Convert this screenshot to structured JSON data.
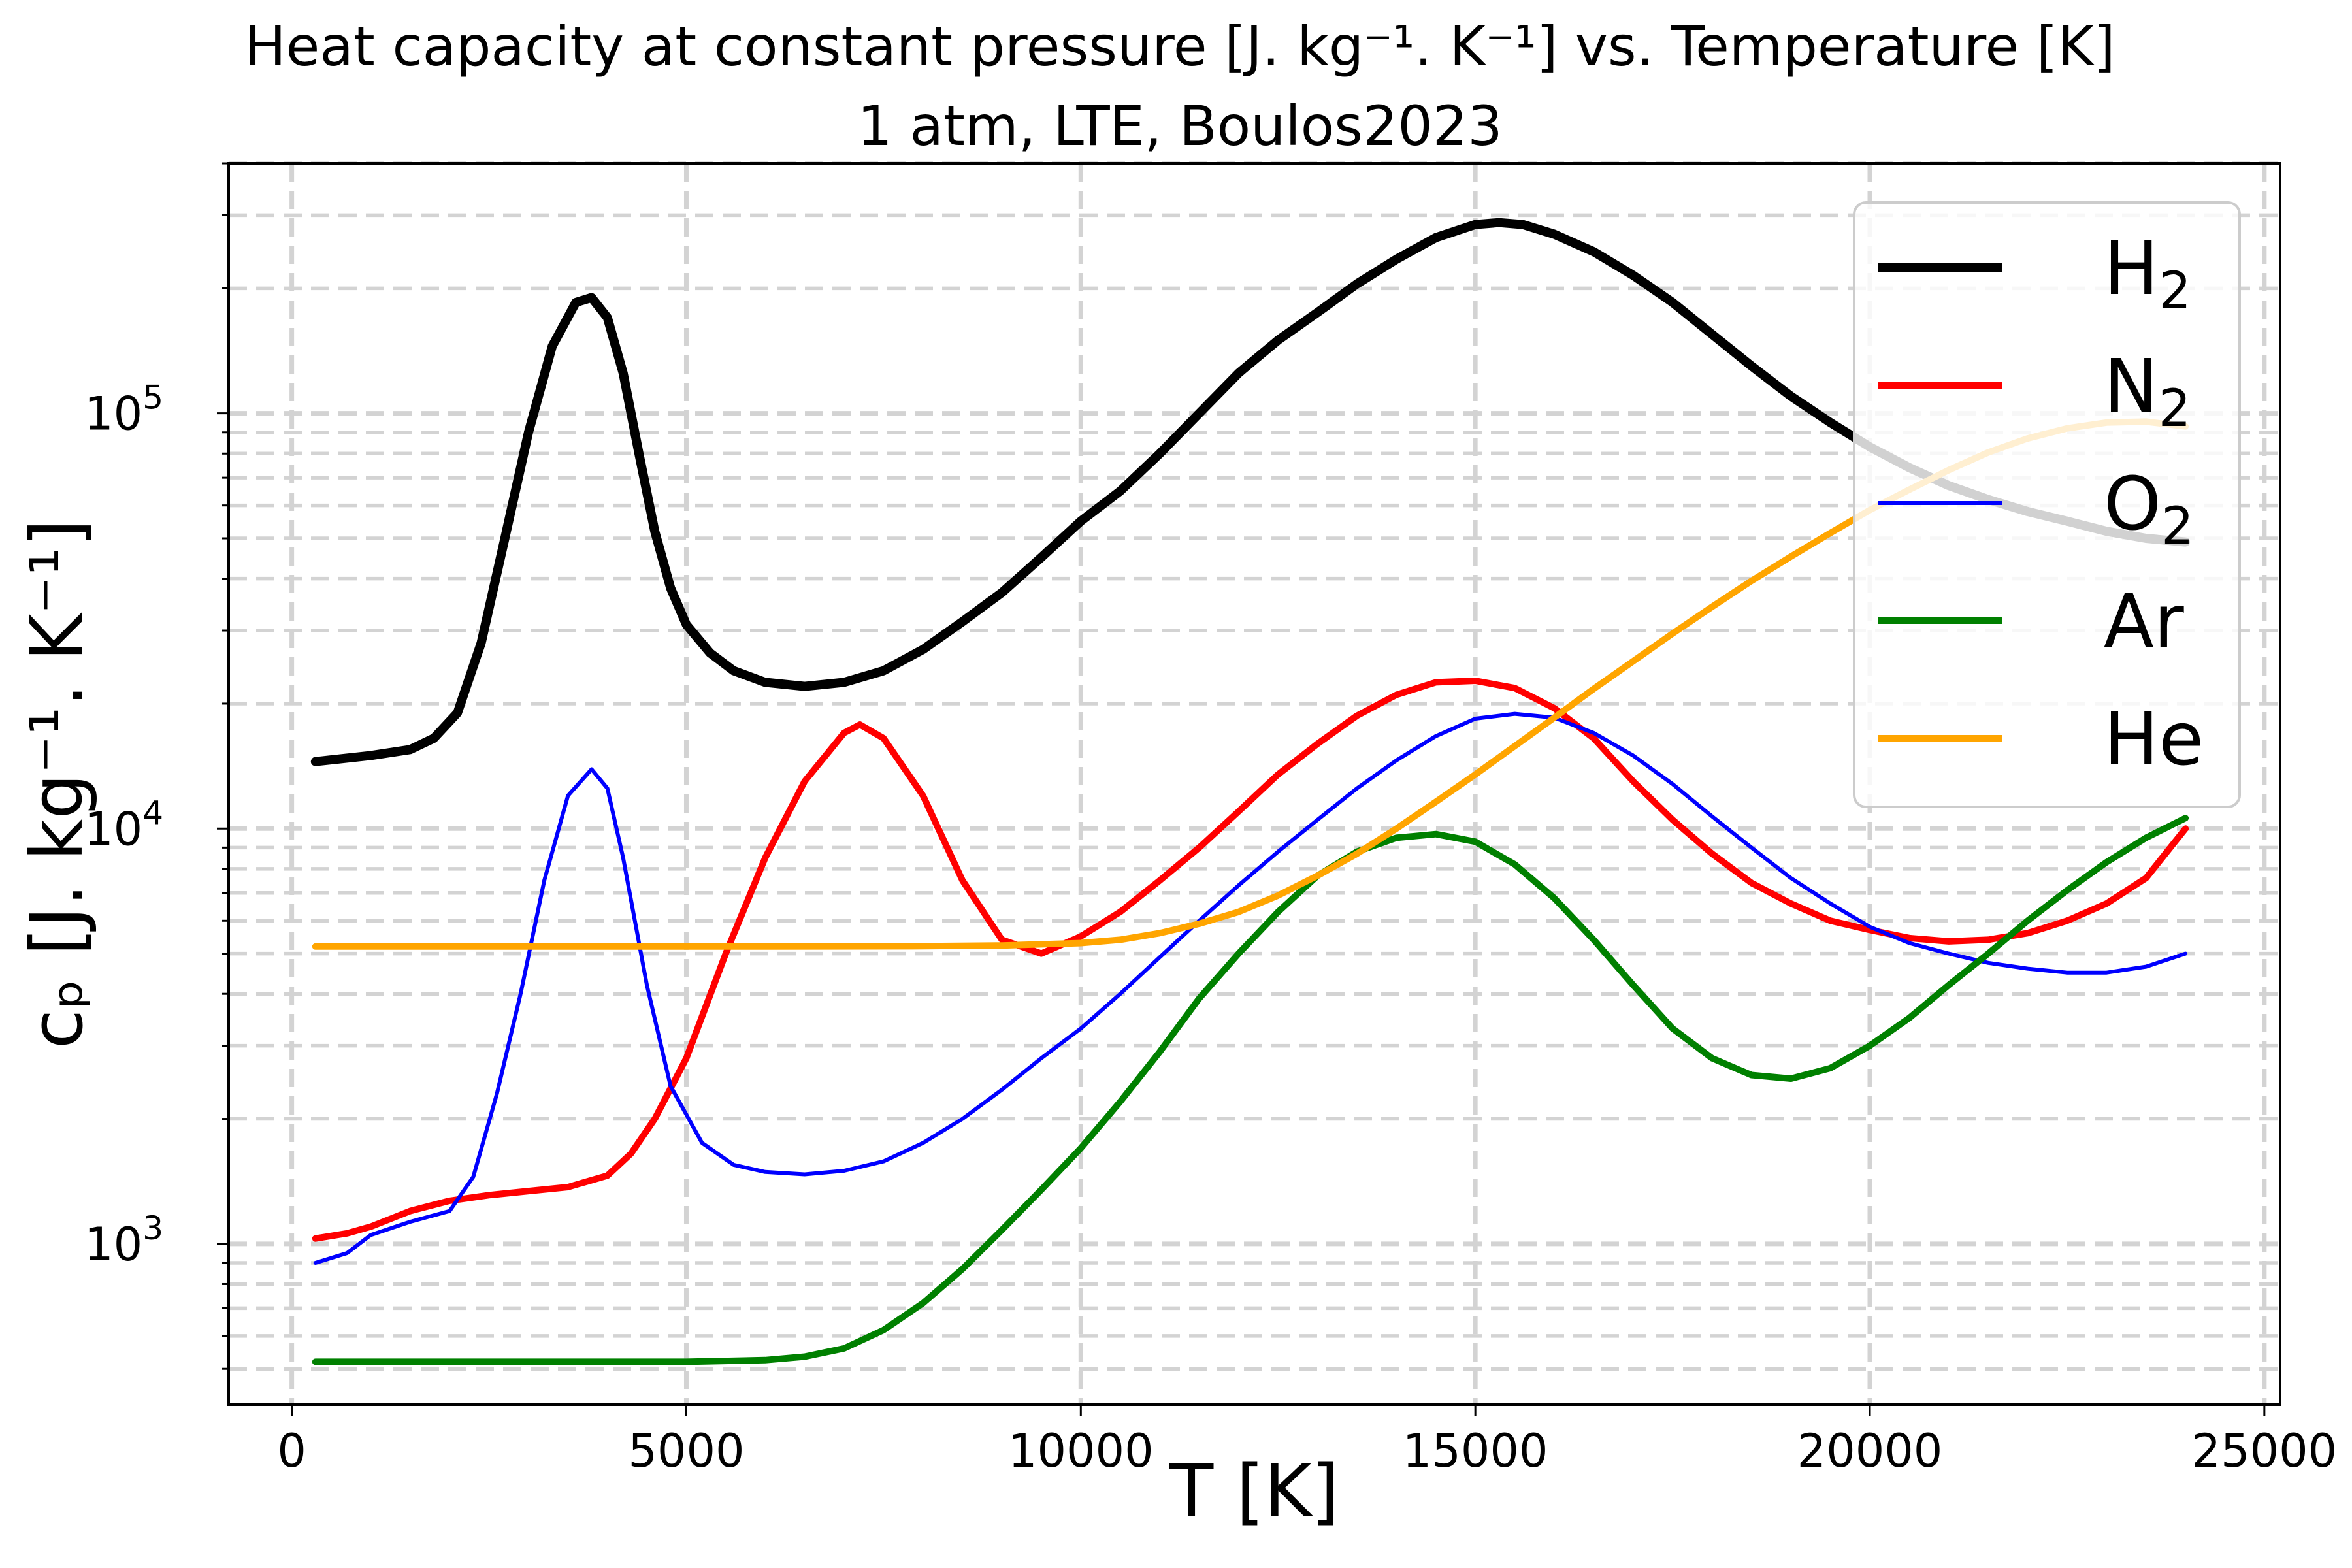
{
  "chart_data": {
    "type": "line",
    "title": "Heat capacity at constant pressure [J. kg⁻¹. K⁻¹] vs. Temperature [K]",
    "subtitle": "1 atm, LTE, Boulos2023",
    "xlabel": "T [K]",
    "ylabel": "cₚ [J. kg⁻¹. K⁻¹]",
    "x_scale": "linear",
    "y_scale": "log",
    "xlim": [
      -800,
      25200
    ],
    "ylim": [
      410,
      400000
    ],
    "x_ticks": [
      0,
      5000,
      10000,
      15000,
      20000,
      25000
    ],
    "x_tick_labels": [
      "0",
      "5000",
      "10000",
      "15000",
      "20000",
      "25000"
    ],
    "y_ticks": [
      1000,
      10000,
      100000
    ],
    "y_tick_labels": [
      {
        "base": "10",
        "exp": "3"
      },
      {
        "base": "10",
        "exp": "4"
      },
      {
        "base": "10",
        "exp": "5"
      }
    ],
    "grid": {
      "major": true,
      "minor": true,
      "style": "dashed",
      "color": "#d3d3d3"
    },
    "legend_position": "top-right",
    "series": [
      {
        "name": "H₂",
        "legend_base": "H",
        "legend_sub": "2",
        "color": "#000000",
        "line_width": "thick",
        "x": [
          300,
          1000,
          1500,
          1800,
          2100,
          2400,
          2700,
          3000,
          3300,
          3600,
          3800,
          4000,
          4200,
          4400,
          4600,
          4800,
          5000,
          5300,
          5600,
          6000,
          6500,
          7000,
          7500,
          8000,
          8500,
          9000,
          9500,
          10000,
          10500,
          11000,
          11500,
          12000,
          12500,
          13000,
          13500,
          14000,
          14500,
          15000,
          15300,
          15600,
          16000,
          16500,
          17000,
          17500,
          18000,
          18500,
          19000,
          19500,
          20000,
          20500,
          21000,
          21500,
          22000,
          22500,
          23000,
          23500,
          24000
        ],
        "values": [
          14500,
          15000,
          15500,
          16500,
          19000,
          28000,
          50000,
          90000,
          145000,
          185000,
          190000,
          170000,
          125000,
          80000,
          52000,
          38000,
          31000,
          26500,
          24000,
          22500,
          22000,
          22500,
          24000,
          27000,
          31500,
          37000,
          45000,
          55000,
          65000,
          80000,
          100000,
          125000,
          150000,
          175000,
          205000,
          235000,
          265000,
          285000,
          288000,
          285000,
          270000,
          245000,
          215000,
          185000,
          155000,
          130000,
          110000,
          95000,
          83000,
          74000,
          67000,
          62000,
          58000,
          55000,
          52000,
          50000,
          49000
        ]
      },
      {
        "name": "N₂",
        "legend_base": "N",
        "legend_sub": "2",
        "color": "#ff0000",
        "line_width": "medium",
        "x": [
          300,
          700,
          1000,
          1500,
          2000,
          2500,
          3000,
          3500,
          4000,
          4300,
          4600,
          5000,
          5500,
          6000,
          6500,
          7000,
          7200,
          7500,
          8000,
          8500,
          9000,
          9500,
          10000,
          10500,
          11000,
          11500,
          12000,
          12500,
          13000,
          13500,
          14000,
          14500,
          15000,
          15500,
          16000,
          16500,
          17000,
          17500,
          18000,
          18500,
          19000,
          19500,
          20000,
          20500,
          21000,
          21500,
          22000,
          22500,
          23000,
          23500,
          24000
        ],
        "values": [
          1030,
          1060,
          1100,
          1200,
          1270,
          1310,
          1340,
          1370,
          1460,
          1650,
          2000,
          2800,
          5000,
          8500,
          13000,
          17000,
          17800,
          16500,
          12000,
          7500,
          5400,
          5000,
          5500,
          6300,
          7500,
          9000,
          11000,
          13500,
          16000,
          18700,
          21000,
          22500,
          22700,
          21800,
          19500,
          16500,
          13000,
          10500,
          8700,
          7400,
          6600,
          6000,
          5700,
          5450,
          5350,
          5400,
          5600,
          6000,
          6600,
          7600,
          10000
        ]
      },
      {
        "name": "O₂",
        "legend_base": "O",
        "legend_sub": "2",
        "color": "#0000ff",
        "line_width": "thin",
        "x": [
          300,
          700,
          1000,
          1500,
          2000,
          2300,
          2600,
          2900,
          3200,
          3500,
          3800,
          4000,
          4200,
          4500,
          4800,
          5200,
          5600,
          6000,
          6500,
          7000,
          7500,
          8000,
          8500,
          9000,
          9500,
          10000,
          10500,
          11000,
          11500,
          12000,
          12500,
          13000,
          13500,
          14000,
          14500,
          15000,
          15500,
          16000,
          16500,
          17000,
          17500,
          18000,
          18500,
          19000,
          19500,
          20000,
          20500,
          21000,
          21500,
          22000,
          22500,
          23000,
          23500,
          24000
        ],
        "values": [
          900,
          950,
          1050,
          1130,
          1200,
          1450,
          2300,
          4000,
          7500,
          12000,
          13900,
          12500,
          8500,
          4200,
          2400,
          1750,
          1550,
          1490,
          1470,
          1500,
          1580,
          1750,
          2000,
          2350,
          2800,
          3300,
          4000,
          4900,
          6000,
          7300,
          8800,
          10500,
          12500,
          14600,
          16700,
          18400,
          18900,
          18500,
          17000,
          15000,
          12800,
          10700,
          9000,
          7600,
          6600,
          5800,
          5300,
          5000,
          4750,
          4600,
          4500,
          4500,
          4650,
          5000
        ]
      },
      {
        "name": "Ar",
        "legend_base": "Ar",
        "legend_sub": "",
        "color": "#008000",
        "line_width": "medium",
        "x": [
          300,
          1000,
          2000,
          3000,
          4000,
          5000,
          6000,
          6500,
          7000,
          7500,
          8000,
          8500,
          9000,
          9500,
          10000,
          10500,
          11000,
          11500,
          12000,
          12500,
          13000,
          13500,
          14000,
          14500,
          15000,
          15500,
          16000,
          16500,
          17000,
          17500,
          18000,
          18500,
          19000,
          19500,
          20000,
          20500,
          21000,
          21500,
          22000,
          22500,
          23000,
          23500,
          24000
        ],
        "values": [
          520,
          520,
          520,
          520,
          520,
          520,
          525,
          535,
          560,
          620,
          720,
          870,
          1080,
          1350,
          1700,
          2200,
          2900,
          3900,
          5000,
          6300,
          7700,
          8800,
          9500,
          9700,
          9300,
          8200,
          6800,
          5400,
          4200,
          3300,
          2800,
          2550,
          2500,
          2650,
          3000,
          3500,
          4200,
          5000,
          6000,
          7100,
          8300,
          9500,
          10600
        ]
      },
      {
        "name": "He",
        "legend_base": "He",
        "legend_sub": "",
        "color": "#ffa500",
        "line_width": "medium",
        "x": [
          300,
          2000,
          4000,
          6000,
          8000,
          9000,
          10000,
          10500,
          11000,
          11500,
          12000,
          12500,
          13000,
          13500,
          14000,
          14500,
          15000,
          15500,
          16000,
          16500,
          17000,
          17500,
          18000,
          18500,
          19000,
          19500,
          20000,
          20500,
          21000,
          21500,
          22000,
          22500,
          23000,
          23500,
          24000
        ],
        "values": [
          5200,
          5200,
          5200,
          5200,
          5210,
          5230,
          5300,
          5400,
          5600,
          5900,
          6300,
          6900,
          7700,
          8700,
          10000,
          11600,
          13500,
          15800,
          18500,
          21700,
          25300,
          29500,
          34200,
          39500,
          45200,
          51500,
          58500,
          65500,
          73000,
          80500,
          87000,
          92000,
          95000,
          95500,
          93000
        ]
      }
    ]
  }
}
